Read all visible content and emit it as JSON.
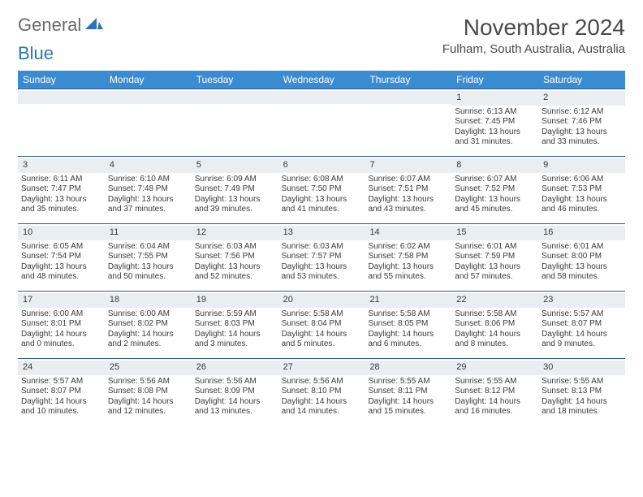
{
  "logo": {
    "part1": "General",
    "part2": "Blue"
  },
  "title": "November 2024",
  "location": "Fulham, South Australia, Australia",
  "colors": {
    "header_bg": "#3b8bd0",
    "header_text": "#ffffff",
    "strip_bg": "#e9eef2",
    "row_border": "#2f5b86",
    "text": "#3a3a3a",
    "logo_gray": "#6a6a6a",
    "logo_blue": "#2e74b5"
  },
  "days_of_week": [
    "Sunday",
    "Monday",
    "Tuesday",
    "Wednesday",
    "Thursday",
    "Friday",
    "Saturday"
  ],
  "weeks": [
    [
      {
        "blank": true
      },
      {
        "blank": true
      },
      {
        "blank": true
      },
      {
        "blank": true
      },
      {
        "blank": true
      },
      {
        "num": "1",
        "sunrise": "Sunrise: 6:13 AM",
        "sunset": "Sunset: 7:45 PM",
        "d1": "Daylight: 13 hours",
        "d2": "and 31 minutes."
      },
      {
        "num": "2",
        "sunrise": "Sunrise: 6:12 AM",
        "sunset": "Sunset: 7:46 PM",
        "d1": "Daylight: 13 hours",
        "d2": "and 33 minutes."
      }
    ],
    [
      {
        "num": "3",
        "sunrise": "Sunrise: 6:11 AM",
        "sunset": "Sunset: 7:47 PM",
        "d1": "Daylight: 13 hours",
        "d2": "and 35 minutes."
      },
      {
        "num": "4",
        "sunrise": "Sunrise: 6:10 AM",
        "sunset": "Sunset: 7:48 PM",
        "d1": "Daylight: 13 hours",
        "d2": "and 37 minutes."
      },
      {
        "num": "5",
        "sunrise": "Sunrise: 6:09 AM",
        "sunset": "Sunset: 7:49 PM",
        "d1": "Daylight: 13 hours",
        "d2": "and 39 minutes."
      },
      {
        "num": "6",
        "sunrise": "Sunrise: 6:08 AM",
        "sunset": "Sunset: 7:50 PM",
        "d1": "Daylight: 13 hours",
        "d2": "and 41 minutes."
      },
      {
        "num": "7",
        "sunrise": "Sunrise: 6:07 AM",
        "sunset": "Sunset: 7:51 PM",
        "d1": "Daylight: 13 hours",
        "d2": "and 43 minutes."
      },
      {
        "num": "8",
        "sunrise": "Sunrise: 6:07 AM",
        "sunset": "Sunset: 7:52 PM",
        "d1": "Daylight: 13 hours",
        "d2": "and 45 minutes."
      },
      {
        "num": "9",
        "sunrise": "Sunrise: 6:06 AM",
        "sunset": "Sunset: 7:53 PM",
        "d1": "Daylight: 13 hours",
        "d2": "and 46 minutes."
      }
    ],
    [
      {
        "num": "10",
        "sunrise": "Sunrise: 6:05 AM",
        "sunset": "Sunset: 7:54 PM",
        "d1": "Daylight: 13 hours",
        "d2": "and 48 minutes."
      },
      {
        "num": "11",
        "sunrise": "Sunrise: 6:04 AM",
        "sunset": "Sunset: 7:55 PM",
        "d1": "Daylight: 13 hours",
        "d2": "and 50 minutes."
      },
      {
        "num": "12",
        "sunrise": "Sunrise: 6:03 AM",
        "sunset": "Sunset: 7:56 PM",
        "d1": "Daylight: 13 hours",
        "d2": "and 52 minutes."
      },
      {
        "num": "13",
        "sunrise": "Sunrise: 6:03 AM",
        "sunset": "Sunset: 7:57 PM",
        "d1": "Daylight: 13 hours",
        "d2": "and 53 minutes."
      },
      {
        "num": "14",
        "sunrise": "Sunrise: 6:02 AM",
        "sunset": "Sunset: 7:58 PM",
        "d1": "Daylight: 13 hours",
        "d2": "and 55 minutes."
      },
      {
        "num": "15",
        "sunrise": "Sunrise: 6:01 AM",
        "sunset": "Sunset: 7:59 PM",
        "d1": "Daylight: 13 hours",
        "d2": "and 57 minutes."
      },
      {
        "num": "16",
        "sunrise": "Sunrise: 6:01 AM",
        "sunset": "Sunset: 8:00 PM",
        "d1": "Daylight: 13 hours",
        "d2": "and 58 minutes."
      }
    ],
    [
      {
        "num": "17",
        "sunrise": "Sunrise: 6:00 AM",
        "sunset": "Sunset: 8:01 PM",
        "d1": "Daylight: 14 hours",
        "d2": "and 0 minutes."
      },
      {
        "num": "18",
        "sunrise": "Sunrise: 6:00 AM",
        "sunset": "Sunset: 8:02 PM",
        "d1": "Daylight: 14 hours",
        "d2": "and 2 minutes."
      },
      {
        "num": "19",
        "sunrise": "Sunrise: 5:59 AM",
        "sunset": "Sunset: 8:03 PM",
        "d1": "Daylight: 14 hours",
        "d2": "and 3 minutes."
      },
      {
        "num": "20",
        "sunrise": "Sunrise: 5:58 AM",
        "sunset": "Sunset: 8:04 PM",
        "d1": "Daylight: 14 hours",
        "d2": "and 5 minutes."
      },
      {
        "num": "21",
        "sunrise": "Sunrise: 5:58 AM",
        "sunset": "Sunset: 8:05 PM",
        "d1": "Daylight: 14 hours",
        "d2": "and 6 minutes."
      },
      {
        "num": "22",
        "sunrise": "Sunrise: 5:58 AM",
        "sunset": "Sunset: 8:06 PM",
        "d1": "Daylight: 14 hours",
        "d2": "and 8 minutes."
      },
      {
        "num": "23",
        "sunrise": "Sunrise: 5:57 AM",
        "sunset": "Sunset: 8:07 PM",
        "d1": "Daylight: 14 hours",
        "d2": "and 9 minutes."
      }
    ],
    [
      {
        "num": "24",
        "sunrise": "Sunrise: 5:57 AM",
        "sunset": "Sunset: 8:07 PM",
        "d1": "Daylight: 14 hours",
        "d2": "and 10 minutes."
      },
      {
        "num": "25",
        "sunrise": "Sunrise: 5:56 AM",
        "sunset": "Sunset: 8:08 PM",
        "d1": "Daylight: 14 hours",
        "d2": "and 12 minutes."
      },
      {
        "num": "26",
        "sunrise": "Sunrise: 5:56 AM",
        "sunset": "Sunset: 8:09 PM",
        "d1": "Daylight: 14 hours",
        "d2": "and 13 minutes."
      },
      {
        "num": "27",
        "sunrise": "Sunrise: 5:56 AM",
        "sunset": "Sunset: 8:10 PM",
        "d1": "Daylight: 14 hours",
        "d2": "and 14 minutes."
      },
      {
        "num": "28",
        "sunrise": "Sunrise: 5:55 AM",
        "sunset": "Sunset: 8:11 PM",
        "d1": "Daylight: 14 hours",
        "d2": "and 15 minutes."
      },
      {
        "num": "29",
        "sunrise": "Sunrise: 5:55 AM",
        "sunset": "Sunset: 8:12 PM",
        "d1": "Daylight: 14 hours",
        "d2": "and 16 minutes."
      },
      {
        "num": "30",
        "sunrise": "Sunrise: 5:55 AM",
        "sunset": "Sunset: 8:13 PM",
        "d1": "Daylight: 14 hours",
        "d2": "and 18 minutes."
      }
    ]
  ]
}
